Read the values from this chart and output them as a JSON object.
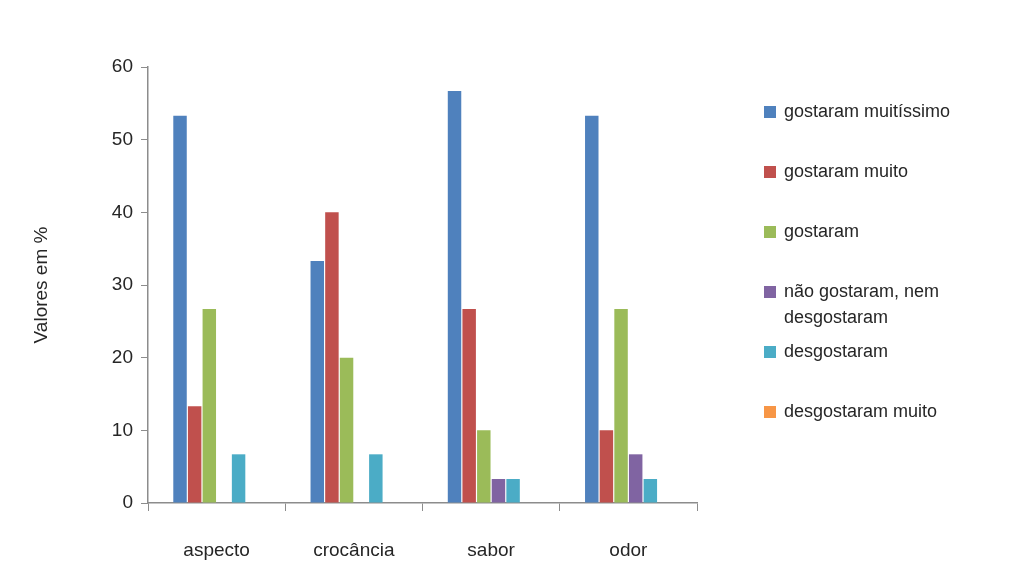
{
  "chart_data": {
    "type": "bar",
    "ylabel": "Valores em %",
    "categories": [
      "aspecto",
      "crocância",
      "sabor",
      "odor"
    ],
    "series": [
      {
        "name": "gostaram muitíssimo",
        "color": "#4f81bd",
        "values": [
          53.3,
          33.3,
          56.7,
          53.3
        ]
      },
      {
        "name": "gostaram muito",
        "color": "#c0504d",
        "values": [
          13.3,
          40,
          26.7,
          10
        ]
      },
      {
        "name": "gostaram",
        "color": "#9bbb59",
        "values": [
          26.7,
          20,
          10,
          26.7
        ]
      },
      {
        "name": "não gostaram, nem desgostaram",
        "color": "#8064a2",
        "values": [
          0,
          0,
          3.3,
          6.7
        ]
      },
      {
        "name": "desgostaram",
        "color": "#4bacc6",
        "values": [
          6.7,
          6.7,
          3.3,
          3.3
        ]
      },
      {
        "name": "desgostaram muito",
        "color": "#f79646",
        "values": [
          0,
          0,
          0,
          0
        ]
      }
    ],
    "ylim": [
      0,
      60
    ],
    "yticks": [
      0,
      10,
      20,
      30,
      40,
      50,
      60
    ],
    "legend": "right"
  }
}
